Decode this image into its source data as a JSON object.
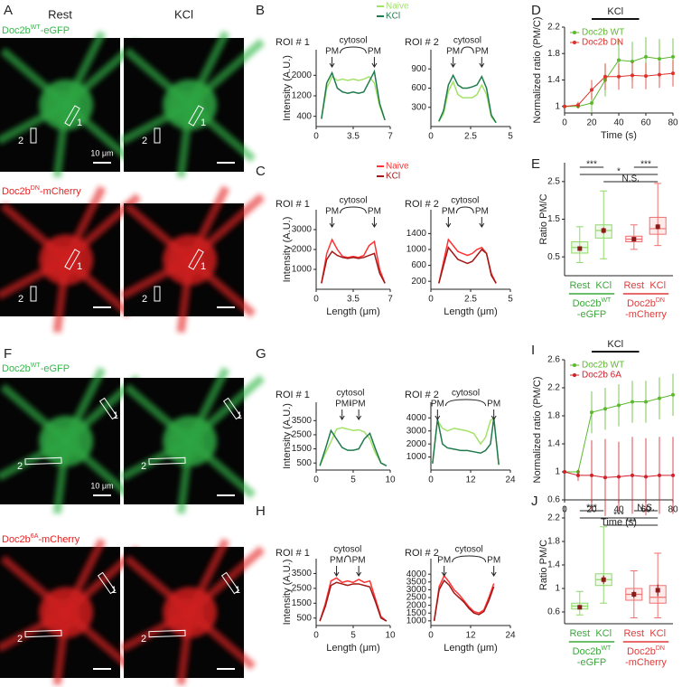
{
  "panel_labels": [
    "A",
    "B",
    "C",
    "D",
    "E",
    "F",
    "G",
    "H",
    "I",
    "J"
  ],
  "image_blocks": [
    {
      "column_headers": [
        "Rest",
        "KCl"
      ],
      "rows": [
        {
          "label": {
            "main": "Doc2b",
            "sup": "WT",
            "tail": "-eGFP"
          },
          "color": "#34b84a",
          "roi_labels": [
            "1",
            "2"
          ],
          "scale_bar": "10 μm"
        },
        {
          "label": {
            "main": "Doc2b",
            "sup": "DN",
            "tail": "-mCherry"
          },
          "color": "#e52222",
          "roi_labels": [
            "1",
            "2"
          ]
        }
      ]
    },
    {
      "rows": [
        {
          "label": {
            "main": "Doc2b",
            "sup": "WT",
            "tail": "-eGFP"
          },
          "color": "#34b84a",
          "roi_labels": [
            "1",
            "2"
          ],
          "scale_bar": "10 μm"
        },
        {
          "label": {
            "main": "Doc2b",
            "sup": "6A",
            "tail": "-mCherry"
          },
          "color": "#e52222",
          "roi_labels": [
            "1",
            "2"
          ]
        }
      ]
    }
  ],
  "chart_data": [
    {
      "type": "profile",
      "title": "ROI # 1",
      "ylabel": "Intensity (A.U.)",
      "annotations": [
        "PM",
        "cytosol",
        "PM"
      ],
      "legend": "top",
      "x": [
        0.5,
        1,
        1.5,
        2,
        2.5,
        3,
        3.5,
        4,
        4.5,
        5,
        5.5,
        6,
        6.5
      ],
      "xlim": [
        0,
        7
      ],
      "xticks": [
        0,
        3.5,
        7
      ],
      "ylim": [
        0,
        3000
      ],
      "yticks": [
        400,
        1200,
        2000
      ],
      "series": [
        {
          "name": "Naive",
          "color": "#a3e26a",
          "values": [
            300,
            1500,
            1950,
            1800,
            1850,
            1800,
            1850,
            1800,
            1850,
            1950,
            1700,
            800,
            250
          ]
        },
        {
          "name": "KCl",
          "color": "#1f7a4d",
          "values": [
            300,
            1700,
            2100,
            1500,
            1350,
            1300,
            1350,
            1300,
            1350,
            1750,
            2150,
            900,
            250
          ]
        }
      ]
    },
    {
      "type": "profile",
      "title": "ROI # 2",
      "annotations": [
        "PM",
        "cytosol",
        "PM"
      ],
      "x": [
        0.5,
        0.8,
        1.1,
        1.4,
        1.7,
        2,
        2.3,
        2.6,
        2.9,
        3.2,
        3.5,
        3.8,
        4.1
      ],
      "xlim": [
        0,
        5
      ],
      "xticks": [
        0,
        2.5,
        5
      ],
      "ylim": [
        0,
        1200
      ],
      "yticks": [
        300,
        600,
        900
      ],
      "series": [
        {
          "color": "#a3e26a",
          "values": [
            80,
            200,
            550,
            700,
            500,
            450,
            450,
            450,
            500,
            650,
            500,
            150,
            60
          ]
        },
        {
          "color": "#1f7a4d",
          "values": [
            80,
            250,
            650,
            800,
            650,
            600,
            600,
            620,
            650,
            780,
            600,
            180,
            60
          ]
        }
      ]
    },
    {
      "type": "profile",
      "title": "ROI # 1",
      "ylabel": "Intensity (A.U.)",
      "xlabel": "Length (μm)",
      "annotations": [
        "PM",
        "cytosol",
        "PM"
      ],
      "legend": "top",
      "x": [
        0.5,
        1,
        1.5,
        2,
        2.5,
        3,
        3.5,
        4,
        4.5,
        5,
        5.5,
        6,
        6.5
      ],
      "xlim": [
        0,
        7
      ],
      "xticks": [
        0,
        3.5,
        7
      ],
      "ylim": [
        0,
        4000
      ],
      "yticks": [
        1000,
        2000,
        3000
      ],
      "series": [
        {
          "name": "Naive",
          "color": "#ff3333",
          "values": [
            300,
            1800,
            2500,
            2000,
            1650,
            1600,
            1650,
            1600,
            1700,
            2200,
            2400,
            1000,
            300
          ]
        },
        {
          "name": "KCl",
          "color": "#a01818",
          "values": [
            300,
            1500,
            1900,
            1700,
            1600,
            1550,
            1600,
            1550,
            1600,
            1700,
            1800,
            800,
            300
          ]
        }
      ]
    },
    {
      "type": "profile",
      "title": "ROI # 2",
      "xlabel": "Length (μm)",
      "annotations": [
        "PM",
        "cytosol",
        "PM"
      ],
      "x": [
        0.5,
        0.8,
        1.1,
        1.4,
        1.7,
        2,
        2.3,
        2.6,
        2.9,
        3.2,
        3.5,
        3.8,
        4.1
      ],
      "xlim": [
        0,
        5
      ],
      "xticks": [
        0,
        2.5,
        5
      ],
      "ylim": [
        0,
        2000
      ],
      "yticks": [
        200,
        600,
        1000,
        1400
      ],
      "series": [
        {
          "color": "#ff3333",
          "values": [
            150,
            700,
            1250,
            1100,
            950,
            900,
            850,
            900,
            1000,
            1050,
            900,
            400,
            150
          ]
        },
        {
          "color": "#a01818",
          "values": [
            150,
            600,
            1050,
            900,
            750,
            700,
            650,
            700,
            850,
            1000,
            900,
            350,
            150
          ]
        }
      ]
    },
    {
      "type": "time",
      "ylabel": "Normalized ratio (PM/C)",
      "xlabel": "Time (s)",
      "stimulus": {
        "label": "KCl",
        "start": 20,
        "end": 55
      },
      "legend": "upper left",
      "x": [
        0,
        10,
        20,
        30,
        40,
        50,
        60,
        70,
        80
      ],
      "xlim": [
        0,
        80
      ],
      "xticks": [
        0,
        20,
        40,
        60,
        80
      ],
      "ylim": [
        0.9,
        2.2
      ],
      "yticks": [
        1,
        1.4,
        1.8,
        2.2
      ],
      "series": [
        {
          "name": "Doc2b WT",
          "color": "#5cb82e",
          "values": [
            1,
            1,
            1.05,
            1.4,
            1.7,
            1.68,
            1.75,
            1.72,
            1.75
          ],
          "errors": [
            0.02,
            0.03,
            0.15,
            0.25,
            0.3,
            0.3,
            0.3,
            0.3,
            0.28
          ]
        },
        {
          "name": "Doc2b DN",
          "color": "#e0302a",
          "values": [
            1,
            1.02,
            1.25,
            1.45,
            1.45,
            1.47,
            1.46,
            1.48,
            1.5
          ],
          "errors": [
            0.02,
            0.05,
            0.15,
            0.2,
            0.2,
            0.2,
            0.2,
            0.2,
            0.2
          ]
        }
      ]
    },
    {
      "type": "box",
      "ylabel": "Ratio PM/C",
      "categories": [
        "Rest",
        "KCl",
        "Rest",
        "KCl"
      ],
      "ylim": [
        0,
        3
      ],
      "yticks": [
        0.5,
        1.5,
        2.5
      ],
      "significance": [
        "***",
        "*",
        "N.S.",
        "***"
      ],
      "group_labels": [
        {
          "main": "Doc2b",
          "sup": "WT",
          "tail": "-eGFP"
        },
        {
          "main": "Doc2b",
          "sup": "DN",
          "tail": "-mCherry"
        }
      ],
      "group_colors": [
        "#3aa83a",
        "#e03a3a"
      ],
      "boxes": [
        {
          "color": "#8fd86a",
          "whisker_low": 0.35,
          "q1": 0.6,
          "median": 0.75,
          "q3": 0.9,
          "whisker_high": 1.3,
          "mean": 0.72,
          "mean_err": 0.05
        },
        {
          "color": "#8fd86a",
          "whisker_low": 0.45,
          "q1": 1.0,
          "median": 1.2,
          "q3": 1.35,
          "whisker_high": 2.25,
          "mean": 1.2,
          "mean_err": 0.08
        },
        {
          "color": "#f07070",
          "whisker_low": 0.7,
          "q1": 0.9,
          "median": 0.97,
          "q3": 1.05,
          "whisker_high": 1.35,
          "mean": 0.97,
          "mean_err": 0.04
        },
        {
          "color": "#f07070",
          "whisker_low": 0.8,
          "q1": 1.1,
          "median": 1.25,
          "q3": 1.55,
          "whisker_high": 2.45,
          "mean": 1.3,
          "mean_err": 0.07
        }
      ]
    },
    {
      "type": "profile",
      "title": "ROI # 1",
      "ylabel": "Intensity (A.U.)",
      "annotations": [
        "PM",
        "cytosol",
        "PM"
      ],
      "x": [
        0.5,
        1.25,
        2,
        2.75,
        3.5,
        4.25,
        5,
        5.75,
        6.5,
        7.25,
        8,
        8.75,
        9.5
      ],
      "xlim": [
        0,
        10
      ],
      "xticks": [
        0,
        5,
        10
      ],
      "ylim": [
        0,
        4800
      ],
      "yticks": [
        500,
        1500,
        2500,
        3500
      ],
      "series": [
        {
          "color": "#a3e26a",
          "values": [
            300,
            1200,
            2000,
            2900,
            3000,
            2900,
            2800,
            2850,
            2700,
            2200,
            1200,
            500,
            300
          ]
        },
        {
          "color": "#1f7a4d",
          "values": [
            300,
            1500,
            2800,
            2200,
            1600,
            1400,
            1400,
            1500,
            2200,
            2600,
            1500,
            500,
            300
          ]
        }
      ]
    },
    {
      "type": "profile",
      "title": "ROI # 2",
      "annotations": [
        "PM",
        "cytosol",
        "PM"
      ],
      "x": [
        0.5,
        2,
        3.5,
        5,
        7,
        9,
        11,
        13,
        15,
        16.5,
        18,
        19,
        20.5
      ],
      "xlim": [
        0,
        24
      ],
      "xticks": [
        0,
        12,
        24
      ],
      "ylim": [
        0,
        5200
      ],
      "yticks": [
        1000,
        2000,
        3000,
        4000
      ],
      "series": [
        {
          "color": "#a3e26a",
          "values": [
            500,
            3800,
            3200,
            3000,
            3200,
            3100,
            3000,
            2800,
            2000,
            2500,
            3800,
            4000,
            400
          ]
        },
        {
          "color": "#1f7a4d",
          "values": [
            500,
            3900,
            2000,
            1700,
            1600,
            1500,
            1500,
            1400,
            1300,
            1500,
            2000,
            4000,
            400
          ]
        }
      ]
    },
    {
      "type": "profile",
      "title": "ROI # 1",
      "ylabel": "Intensity (A.U.)",
      "xlabel": "Length (μm)",
      "annotations": [
        "PM",
        "cytosol",
        "PM"
      ],
      "x": [
        0.5,
        1.25,
        2,
        2.75,
        3.5,
        4.25,
        5,
        5.75,
        6.5,
        7.25,
        8,
        8.75,
        9.5
      ],
      "xlim": [
        0,
        10
      ],
      "xticks": [
        0,
        5,
        10
      ],
      "ylim": [
        0,
        4500
      ],
      "yticks": [
        500,
        1500,
        2500,
        3500
      ],
      "series": [
        {
          "color": "#ff3333",
          "values": [
            300,
            1500,
            3000,
            3200,
            2900,
            3000,
            2900,
            3100,
            2900,
            3000,
            1800,
            600,
            300
          ]
        },
        {
          "color": "#a01818",
          "values": [
            300,
            1300,
            2700,
            2900,
            2800,
            2700,
            2800,
            2800,
            2700,
            2600,
            1600,
            500,
            300
          ]
        }
      ]
    },
    {
      "type": "profile",
      "title": "ROI # 2",
      "xlabel": "Length (μm)",
      "annotations": [
        "PM",
        "cytosol",
        "PM"
      ],
      "x": [
        1,
        2.5,
        4,
        5.5,
        7,
        8.5,
        10,
        11.5,
        13,
        14.5,
        16,
        17.5,
        19
      ],
      "xlim": [
        0,
        24
      ],
      "xticks": [
        0,
        12,
        24
      ],
      "ylim": [
        700,
        5000
      ],
      "yticks": [
        1000,
        1500,
        2000,
        2500,
        3000,
        3500,
        4000
      ],
      "series": [
        {
          "color": "#ff3333",
          "values": [
            1000,
            3200,
            3900,
            3500,
            3000,
            2700,
            2300,
            1900,
            1600,
            1500,
            1700,
            2500,
            3400
          ]
        },
        {
          "color": "#a01818",
          "values": [
            1000,
            3000,
            3600,
            3300,
            2800,
            2500,
            2200,
            1800,
            1500,
            1400,
            1600,
            2300,
            3200
          ]
        }
      ]
    },
    {
      "type": "time",
      "ylabel": "Normalized ratio (PM/C)",
      "xlabel": "Time (s)",
      "stimulus": {
        "label": "KCl",
        "start": 20,
        "end": 55
      },
      "legend": "upper left",
      "x": [
        0,
        10,
        20,
        30,
        40,
        50,
        60,
        70,
        80
      ],
      "xlim": [
        0,
        80
      ],
      "xticks": [
        0,
        20,
        40,
        60,
        80
      ],
      "ylim": [
        0.6,
        2.6
      ],
      "yticks": [
        0.6,
        1,
        1.4,
        1.8,
        2.2,
        2.6
      ],
      "series": [
        {
          "name": "Doc2b WT",
          "color": "#5cb82e",
          "values": [
            1,
            1,
            1.85,
            1.9,
            1.95,
            2,
            2,
            2.05,
            2.1
          ],
          "errors": [
            0.02,
            0.02,
            0.3,
            0.3,
            0.3,
            0.3,
            0.3,
            0.3,
            0.3
          ]
        },
        {
          "name": "Doc2b 6A",
          "color": "#d0202a",
          "values": [
            1,
            0.95,
            0.95,
            0.92,
            0.93,
            0.95,
            0.93,
            0.95,
            0.95
          ],
          "errors": [
            0.02,
            0.08,
            0.5,
            0.55,
            0.5,
            0.55,
            0.55,
            0.55,
            0.55
          ]
        }
      ]
    },
    {
      "type": "box",
      "ylabel": "Ratio PM/C",
      "categories": [
        "Rest",
        "KCl",
        "Rest",
        "KCl"
      ],
      "ylim": [
        0.4,
        2.4
      ],
      "yticks": [
        0.6,
        1,
        1.4,
        1.8,
        2.2
      ],
      "significance": [
        "***",
        "***",
        "***",
        "N.S."
      ],
      "group_labels": [
        {
          "main": "Doc2b",
          "sup": "WT",
          "tail": "-eGFP"
        },
        {
          "main": "Doc2b",
          "sup": "DN",
          "tail": "-mCherry"
        }
      ],
      "group_colors": [
        "#3aa83a",
        "#e03a3a"
      ],
      "boxes": [
        {
          "color": "#8fd86a",
          "whisker_low": 0.55,
          "q1": 0.65,
          "median": 0.7,
          "q3": 0.75,
          "whisker_high": 0.95,
          "mean": 0.68,
          "mean_err": 0.03
        },
        {
          "color": "#8fd86a",
          "whisker_low": 0.75,
          "q1": 1.05,
          "median": 1.15,
          "q3": 1.25,
          "whisker_high": 2.05,
          "mean": 1.15,
          "mean_err": 0.07
        },
        {
          "color": "#f07070",
          "whisker_low": 0.5,
          "q1": 0.8,
          "median": 0.9,
          "q3": 1.0,
          "whisker_high": 1.3,
          "mean": 0.9,
          "mean_err": 0.06
        },
        {
          "color": "#f07070",
          "whisker_low": 0.5,
          "q1": 0.75,
          "median": 0.85,
          "q3": 1.05,
          "whisker_high": 1.6,
          "mean": 0.97,
          "mean_err": 0.1
        }
      ]
    }
  ]
}
